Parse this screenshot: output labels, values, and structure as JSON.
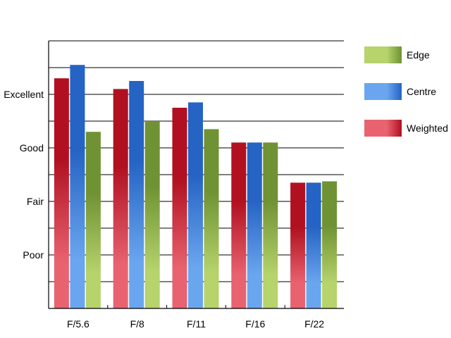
{
  "chart_data": {
    "type": "bar",
    "title": "",
    "xlabel": "",
    "ylabel": "",
    "categories": [
      "F/5.6",
      "F/8",
      "F/11",
      "F/16",
      "F/22"
    ],
    "y_tick_labels": [
      {
        "value": 2,
        "label": "Poor"
      },
      {
        "value": 4,
        "label": "Fair"
      },
      {
        "value": 6,
        "label": "Good"
      },
      {
        "value": 8,
        "label": "Excellent"
      }
    ],
    "ylim": [
      0,
      10
    ],
    "grid": true,
    "legend_position": "right",
    "series": [
      {
        "name": "Weighted",
        "values": [
          8.6,
          8.2,
          7.5,
          6.2,
          4.7
        ],
        "color_light": "#e8636f",
        "color_dark": "#b01020"
      },
      {
        "name": "Centre",
        "values": [
          9.1,
          8.5,
          7.7,
          6.2,
          4.7
        ],
        "color_light": "#6aa6ef",
        "color_dark": "#2563c4"
      },
      {
        "name": "Edge",
        "values": [
          6.6,
          7.0,
          6.7,
          6.2,
          4.75
        ],
        "color_light": "#b6d36c",
        "color_dark": "#6f9234"
      }
    ],
    "legend_order": [
      "Edge",
      "Centre",
      "Weighted"
    ]
  }
}
